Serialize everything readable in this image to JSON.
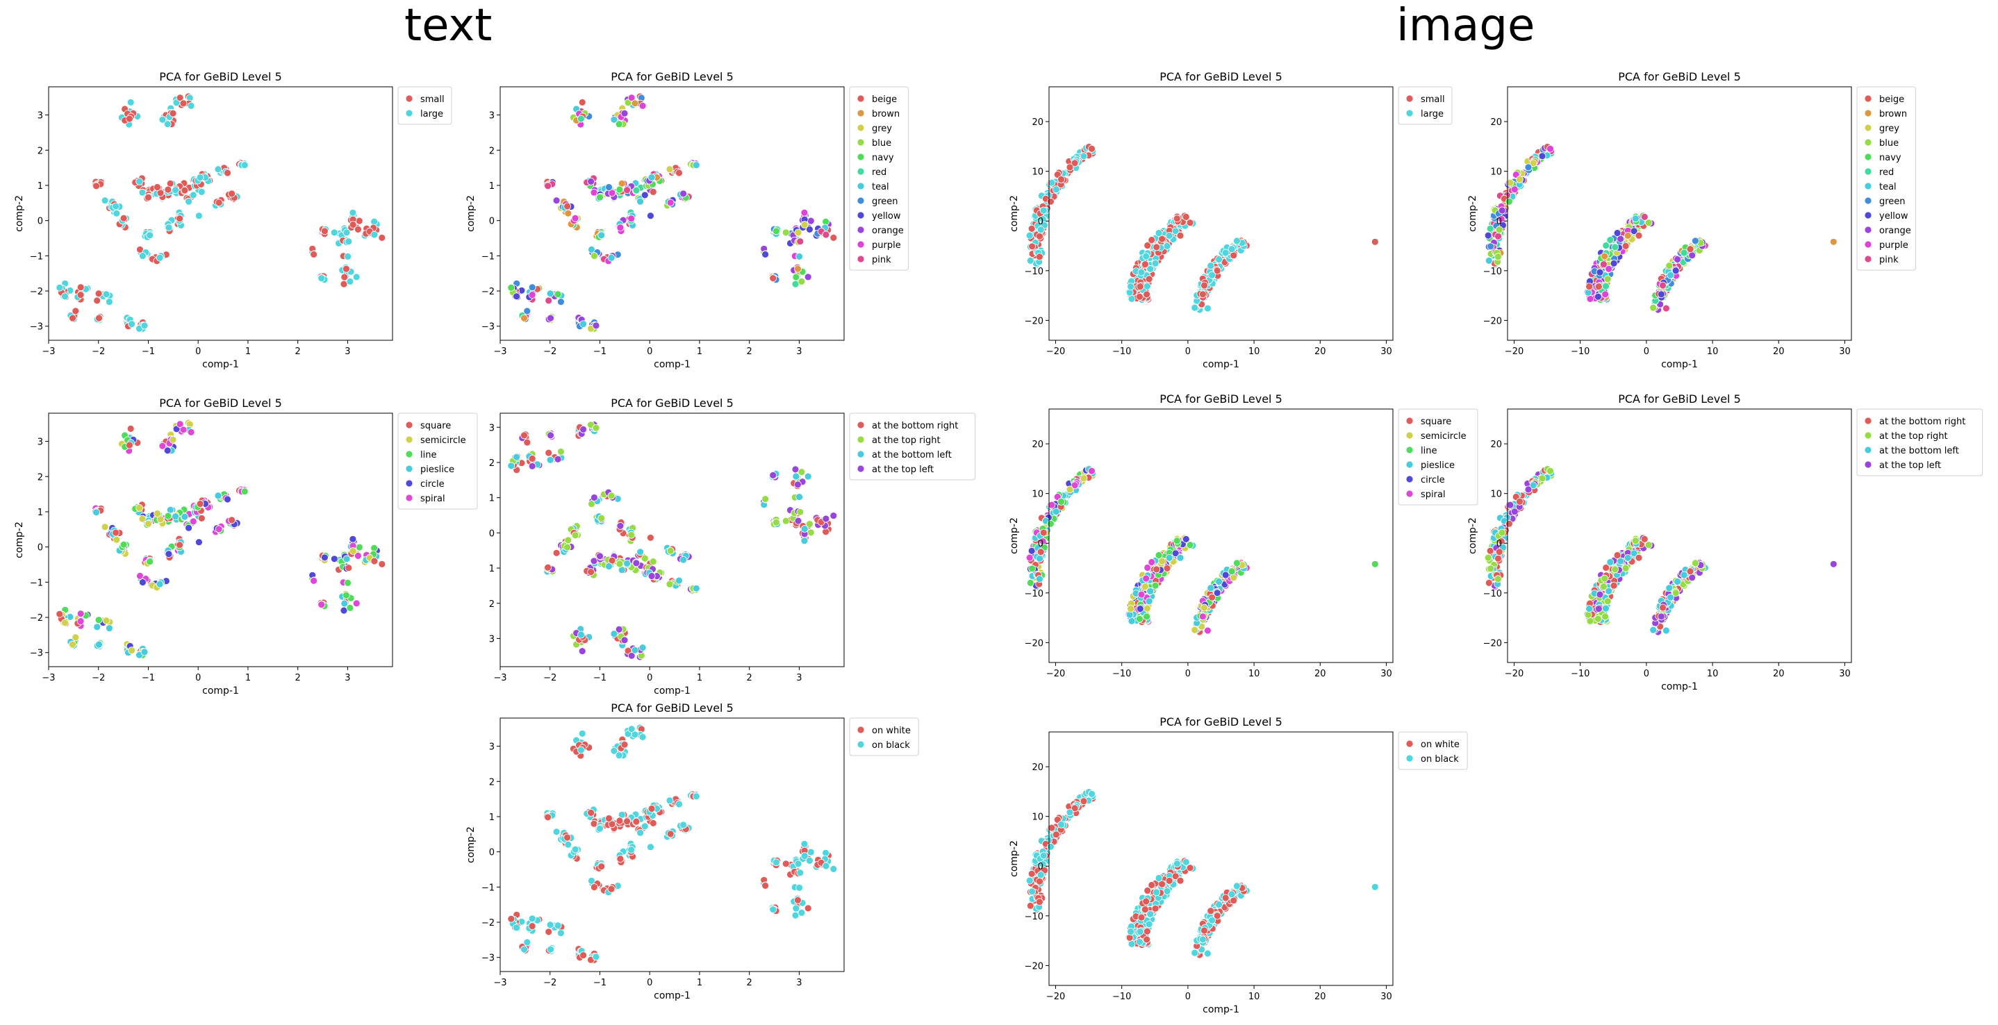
{
  "sections": {
    "text": "text",
    "image": "image"
  },
  "palettes": {
    "size": [
      "#e05a57",
      "#4fd5dd"
    ],
    "color": [
      "#e05a57",
      "#e0963f",
      "#cfd14a",
      "#95dc44",
      "#4fdc59",
      "#3fdb9d",
      "#46ccdd",
      "#3f8ddc",
      "#5048d9",
      "#9944dc",
      "#e042d9",
      "#e04a8d"
    ],
    "shape": [
      "#e05a57",
      "#cfd14a",
      "#4fdc59",
      "#46ccdd",
      "#5048d9",
      "#df47d7"
    ],
    "position": [
      "#e05a57",
      "#95dc44",
      "#46ccdd",
      "#9944dc"
    ],
    "background": [
      "#e05a57",
      "#4fd5dd"
    ]
  },
  "chart_data": [
    {
      "id": "text-size",
      "group": "text",
      "type": "scatter",
      "title": "PCA for GeBiD Level 5",
      "xlabel": "comp-1",
      "ylabel": "comp-2",
      "xlim": [
        -3,
        3.9
      ],
      "ylim": [
        -3.4,
        3.8
      ],
      "xticks": [
        "−3",
        "−2",
        "−1",
        "0",
        "1",
        "2",
        "3"
      ],
      "xtick_values": [
        -3,
        -2,
        -1,
        0,
        1,
        2,
        3
      ],
      "yticks": [
        "−3",
        "−2",
        "−1",
        "0",
        "1",
        "2",
        "3"
      ],
      "ytick_values": [
        -3,
        -2,
        -1,
        0,
        1,
        2,
        3
      ],
      "legend": [
        "small",
        "large"
      ],
      "palette": "size",
      "legend_placement": "outside-upper-right",
      "cloud": "text"
    },
    {
      "id": "text-color",
      "group": "text",
      "type": "scatter",
      "title": "PCA for GeBiD Level 5",
      "xlabel": "comp-1",
      "ylabel": "comp-2",
      "xlim": [
        -3,
        3.9
      ],
      "ylim": [
        -3.4,
        3.8
      ],
      "xticks": [
        "−3",
        "−2",
        "−1",
        "0",
        "1",
        "2",
        "3"
      ],
      "xtick_values": [
        -3,
        -2,
        -1,
        0,
        1,
        2,
        3
      ],
      "yticks": [
        "−3",
        "−2",
        "−1",
        "0",
        "1",
        "2",
        "3"
      ],
      "ytick_values": [
        -3,
        -2,
        -1,
        0,
        1,
        2,
        3
      ],
      "legend": [
        "beige",
        "brown",
        "grey",
        "blue",
        "navy",
        "red",
        "teal",
        "green",
        "yellow",
        "orange",
        "purple",
        "pink"
      ],
      "palette": "color",
      "legend_placement": "outside-upper-right",
      "cloud": "text"
    },
    {
      "id": "text-shape",
      "group": "text",
      "type": "scatter",
      "title": "PCA for GeBiD Level 5",
      "xlabel": "comp-1",
      "ylabel": "comp-2",
      "xlim": [
        -3,
        3.9
      ],
      "ylim": [
        -3.4,
        3.8
      ],
      "xticks": [
        "−3",
        "−2",
        "−1",
        "0",
        "1",
        "2",
        "3"
      ],
      "xtick_values": [
        -3,
        -2,
        -1,
        0,
        1,
        2,
        3
      ],
      "yticks": [
        "−3",
        "−2",
        "−1",
        "0",
        "1",
        "2",
        "3"
      ],
      "ytick_values": [
        -3,
        -2,
        -1,
        0,
        1,
        2,
        3
      ],
      "legend": [
        "square",
        "semicircle",
        "line",
        "pieslice",
        "circle",
        "spiral"
      ],
      "palette": "shape",
      "legend_placement": "outside-upper-right",
      "cloud": "text"
    },
    {
      "id": "text-position",
      "group": "text",
      "type": "scatter",
      "title": "PCA for GeBiD Level 5",
      "xlabel": "comp-1",
      "ylabel": "",
      "xlim": [
        -3,
        3.9
      ],
      "ylim": [
        -3.4,
        3.8
      ],
      "y_inverted": true,
      "xticks": [
        "−3",
        "−2",
        "−1",
        "0",
        "1",
        "2",
        "3"
      ],
      "xtick_values": [
        -3,
        -2,
        -1,
        0,
        1,
        2,
        3
      ],
      "yticks": [
        "3",
        "2",
        "1",
        "0",
        "1",
        "2",
        "3"
      ],
      "ytick_values": [
        -3,
        -2,
        -1,
        0,
        1,
        2,
        3
      ],
      "legend": [
        "at the bottom right",
        "at the top right",
        "at the bottom left",
        "at the top left"
      ],
      "palette": "position",
      "legend_placement": "outside-upper-right",
      "cloud": "text"
    },
    {
      "id": "text-background",
      "group": "text",
      "type": "scatter",
      "title": "PCA for GeBiD Level 5",
      "xlabel": "comp-1",
      "ylabel": "comp-2",
      "xlim": [
        -3,
        3.9
      ],
      "ylim": [
        -3.4,
        3.8
      ],
      "xticks": [
        "−3",
        "−2",
        "−1",
        "0",
        "1",
        "2",
        "3"
      ],
      "xtick_values": [
        -3,
        -2,
        -1,
        0,
        1,
        2,
        3
      ],
      "yticks": [
        "−3",
        "−2",
        "−1",
        "0",
        "1",
        "2",
        "3"
      ],
      "ytick_values": [
        -3,
        -2,
        -1,
        0,
        1,
        2,
        3
      ],
      "legend": [
        "on white",
        "on black"
      ],
      "palette": "background",
      "legend_placement": "outside-upper-right",
      "cloud": "text"
    },
    {
      "id": "image-size",
      "group": "image",
      "type": "scatter",
      "title": "PCA for GeBiD Level 5",
      "xlabel": "comp-1",
      "ylabel": "comp-2",
      "xlim": [
        -21,
        31
      ],
      "ylim": [
        -24,
        27
      ],
      "xticks": [
        "−20",
        "−10",
        "0",
        "10",
        "20",
        "30"
      ],
      "xtick_values": [
        -20,
        -10,
        0,
        10,
        20,
        30
      ],
      "yticks": [
        "−20",
        "−10",
        "0",
        "10",
        "20"
      ],
      "ytick_values": [
        -20,
        -10,
        0,
        10,
        20
      ],
      "legend": [
        "small",
        "large"
      ],
      "palette": "size",
      "legend_placement": "outside-upper-right",
      "cloud": "image",
      "outlier_class": 0
    },
    {
      "id": "image-color",
      "group": "image",
      "type": "scatter",
      "title": "PCA for GeBiD Level 5",
      "xlabel": "comp-1",
      "ylabel": "comp-2",
      "xlim": [
        -21,
        31
      ],
      "ylim": [
        -24,
        27
      ],
      "xticks": [
        "−20",
        "−10",
        "0",
        "10",
        "20",
        "30"
      ],
      "xtick_values": [
        -20,
        -10,
        0,
        10,
        20,
        30
      ],
      "yticks": [
        "−20",
        "−10",
        "0",
        "10",
        "20"
      ],
      "ytick_values": [
        -20,
        -10,
        0,
        10,
        20
      ],
      "legend": [
        "beige",
        "brown",
        "grey",
        "blue",
        "navy",
        "red",
        "teal",
        "green",
        "yellow",
        "orange",
        "purple",
        "pink"
      ],
      "palette": "color",
      "legend_placement": "outside-upper-right",
      "cloud": "image",
      "outlier_class": 1
    },
    {
      "id": "image-shape",
      "group": "image",
      "type": "scatter",
      "title": "PCA for GeBiD Level 5",
      "xlabel": "",
      "ylabel": "comp-2",
      "xlim": [
        -21,
        31
      ],
      "ylim": [
        -24,
        27
      ],
      "xticks": [
        "−20",
        "−10",
        "0",
        "10",
        "20",
        "30"
      ],
      "xtick_values": [
        -20,
        -10,
        0,
        10,
        20,
        30
      ],
      "yticks": [
        "−20",
        "−10",
        "0",
        "10",
        "20"
      ],
      "ytick_values": [
        -20,
        -10,
        0,
        10,
        20
      ],
      "legend": [
        "square",
        "semicircle",
        "line",
        "pieslice",
        "circle",
        "spiral"
      ],
      "palette": "shape",
      "legend_placement": "outside-upper-right",
      "cloud": "image",
      "outlier_class": 2
    },
    {
      "id": "image-position",
      "group": "image",
      "type": "scatter",
      "title": "PCA for GeBiD Level 5",
      "xlabel": "comp-1",
      "ylabel": "comp-2",
      "xlim": [
        -21,
        31
      ],
      "ylim": [
        -24,
        27
      ],
      "xticks": [
        "−20",
        "−10",
        "0",
        "10",
        "20",
        "30"
      ],
      "xtick_values": [
        -20,
        -10,
        0,
        10,
        20,
        30
      ],
      "yticks": [
        "−20",
        "−10",
        "0",
        "10",
        "20"
      ],
      "ytick_values": [
        -20,
        -10,
        0,
        10,
        20
      ],
      "legend": [
        "at the bottom right",
        "at the top right",
        "at the bottom left",
        "at the top left"
      ],
      "palette": "position",
      "legend_placement": "outside-upper-right",
      "cloud": "image",
      "outlier_class": 3
    },
    {
      "id": "image-background",
      "group": "image",
      "type": "scatter",
      "title": "PCA for GeBiD Level 5",
      "xlabel": "comp-1",
      "ylabel": "comp-2",
      "xlim": [
        -21,
        31
      ],
      "ylim": [
        -24,
        27
      ],
      "xticks": [
        "−20",
        "−10",
        "0",
        "10",
        "20",
        "30"
      ],
      "xtick_values": [
        -20,
        -10,
        0,
        10,
        20,
        30
      ],
      "yticks": [
        "−20",
        "−10",
        "0",
        "10",
        "20"
      ],
      "ytick_values": [
        -20,
        -10,
        0,
        10,
        20
      ],
      "legend": [
        "on white",
        "on black"
      ],
      "palette": "background",
      "legend_placement": "outside-upper-right",
      "cloud": "image",
      "outlier_class": 1
    }
  ],
  "point_clouds": {
    "text_clusters": [
      [
        -1.4,
        3.0,
        0.12,
        0.25
      ],
      [
        -0.6,
        3.0,
        0.12,
        0.25
      ],
      [
        -0.3,
        3.4,
        0.1,
        0.15
      ],
      [
        -2.0,
        1.0,
        0.06,
        0.1
      ],
      [
        -1.7,
        0.4,
        0.1,
        0.2
      ],
      [
        -1.5,
        -0.1,
        0.06,
        0.15
      ],
      [
        -1.2,
        1.1,
        0.08,
        0.12
      ],
      [
        -1.0,
        0.8,
        0.1,
        0.15
      ],
      [
        -0.8,
        0.7,
        0.2,
        0.25
      ],
      [
        -0.4,
        0.9,
        0.2,
        0.2
      ],
      [
        -0.4,
        0.0,
        0.1,
        0.2
      ],
      [
        -0.6,
        -0.2,
        0.05,
        0.15
      ],
      [
        -0.1,
        0.8,
        0.15,
        0.3
      ],
      [
        0.1,
        1.2,
        0.12,
        0.15
      ],
      [
        0.5,
        1.4,
        0.08,
        0.08
      ],
      [
        0.7,
        0.7,
        0.06,
        0.15
      ],
      [
        0.9,
        1.6,
        0.05,
        0.05
      ],
      [
        0.4,
        0.5,
        0.05,
        0.05
      ],
      [
        -1.1,
        -0.9,
        0.05,
        0.08
      ],
      [
        -0.8,
        -1.0,
        0.1,
        0.12
      ],
      [
        -1.0,
        -0.4,
        0.05,
        0.05
      ],
      [
        -2.7,
        -2.0,
        0.08,
        0.15
      ],
      [
        -2.3,
        -2.1,
        0.1,
        0.15
      ],
      [
        -1.9,
        -2.1,
        0.12,
        0.1
      ],
      [
        -2.5,
        -2.7,
        0.05,
        0.08
      ],
      [
        -2.0,
        -2.8,
        0.05,
        0.05
      ],
      [
        -1.4,
        -2.9,
        0.06,
        0.1
      ],
      [
        -1.1,
        -3.0,
        0.05,
        0.08
      ],
      [
        2.3,
        -0.9,
        0.03,
        0.06
      ],
      [
        2.5,
        -0.3,
        0.03,
        0.05
      ],
      [
        2.5,
        -1.6,
        0.03,
        0.05
      ],
      [
        2.9,
        -0.6,
        0.15,
        0.3
      ],
      [
        3.1,
        -0.1,
        0.12,
        0.2
      ],
      [
        3.0,
        -1.5,
        0.12,
        0.15
      ],
      [
        3.5,
        -0.3,
        0.1,
        0.2
      ]
    ],
    "image_arcs": [
      {
        "cx": 4,
        "cy": -5,
        "r0": 26,
        "r1": 28,
        "t0": 188,
        "t1": 133,
        "n": 130
      },
      {
        "cx": 14,
        "cy": -16,
        "r0": 20,
        "r1": 23,
        "t0": 180,
        "t1": 130,
        "n": 190
      },
      {
        "cx": 20,
        "cy": -18,
        "r0": 17,
        "r1": 19,
        "t0": 180,
        "t1": 130,
        "n": 120
      }
    ],
    "image_outlier": [
      28.3,
      -4.2
    ]
  }
}
